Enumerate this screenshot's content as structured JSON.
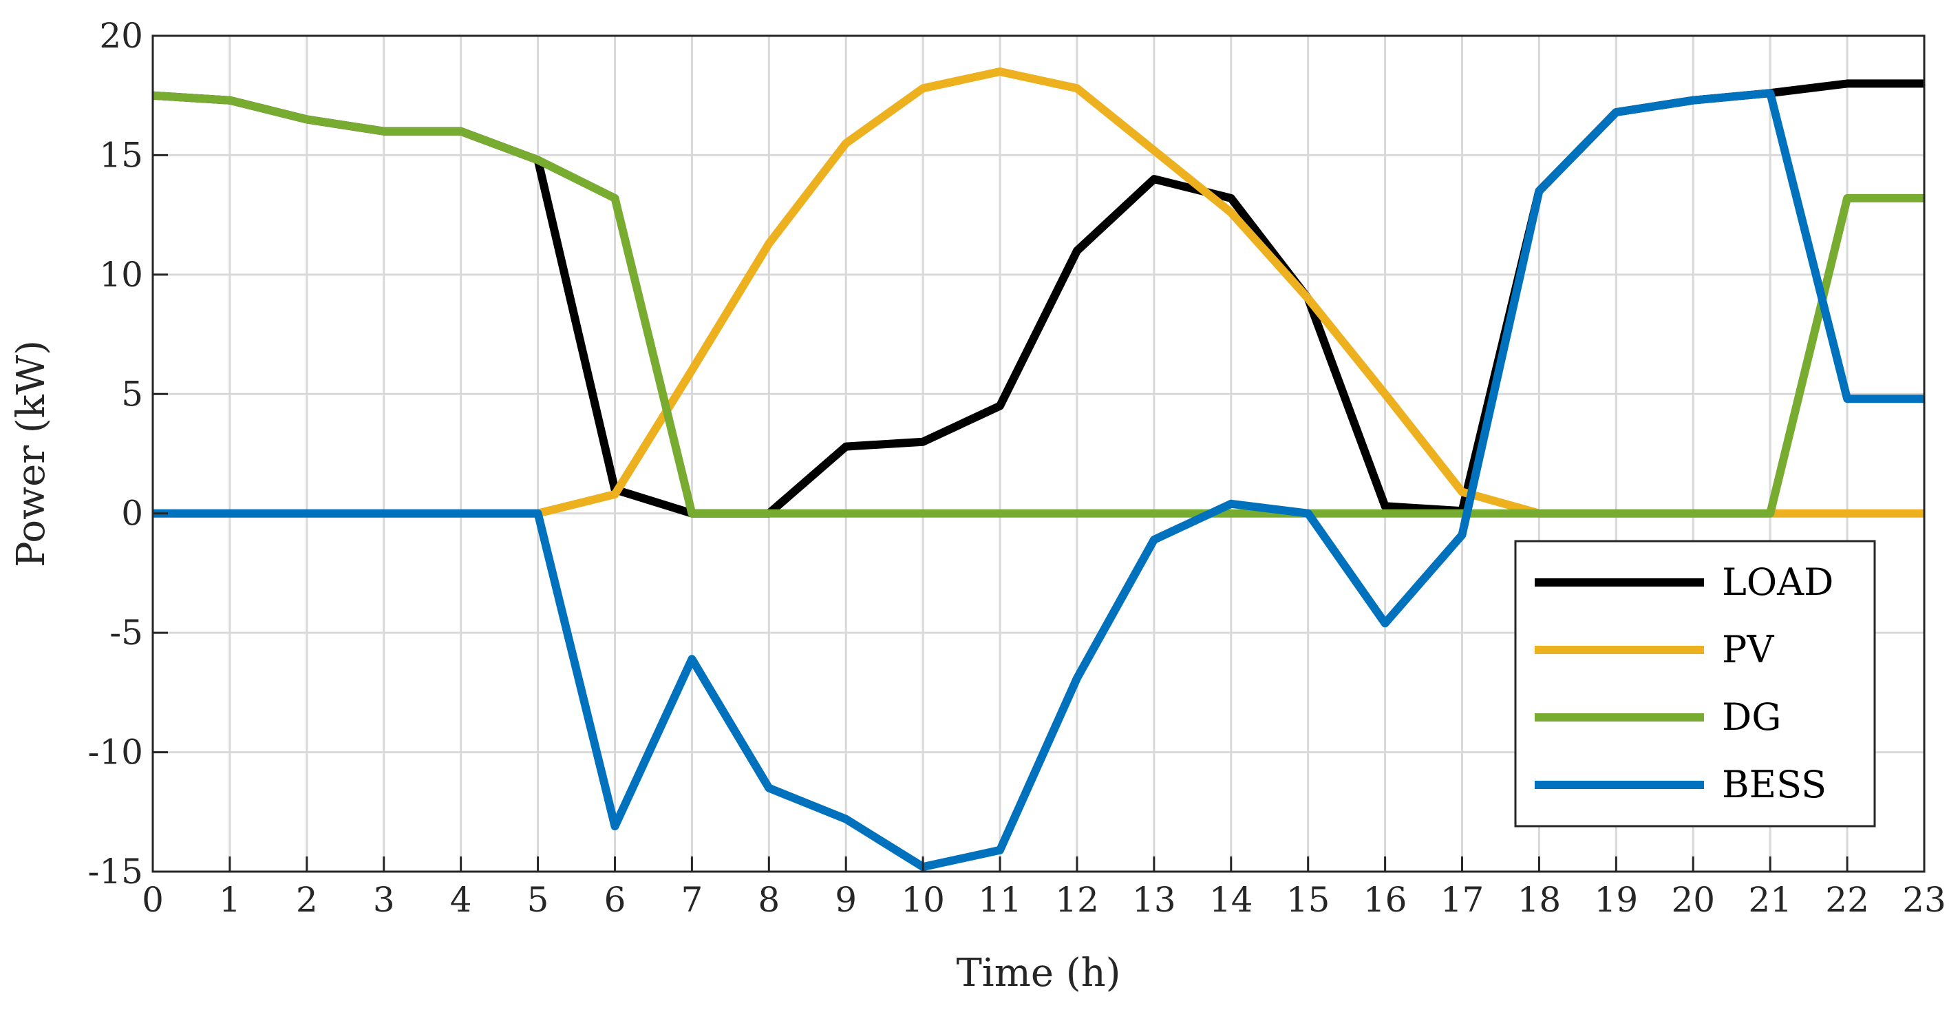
{
  "chart_data": {
    "type": "line",
    "xlabel": "Time (h)",
    "ylabel": "Power (kW)",
    "xlim": [
      0,
      23
    ],
    "ylim": [
      -15,
      20
    ],
    "x": [
      0,
      1,
      2,
      3,
      4,
      5,
      6,
      7,
      8,
      9,
      10,
      11,
      12,
      13,
      14,
      15,
      16,
      17,
      18,
      19,
      20,
      21,
      22,
      23
    ],
    "x_ticks": [
      "0",
      "1",
      "2",
      "3",
      "4",
      "5",
      "6",
      "7",
      "8",
      "9",
      "10",
      "11",
      "12",
      "13",
      "14",
      "15",
      "16",
      "17",
      "18",
      "19",
      "20",
      "21",
      "22",
      "23"
    ],
    "y_ticks": [
      "-15",
      "-10",
      "-5",
      "0",
      "5",
      "10",
      "15",
      "20"
    ],
    "y_tick_values": [
      -15,
      -10,
      -5,
      0,
      5,
      10,
      15,
      20
    ],
    "grid": true,
    "legend_position": "bottom-right",
    "series": [
      {
        "name": "LOAD",
        "color": "#000000",
        "values": [
          17.5,
          17.3,
          16.5,
          16.0,
          16.0,
          14.8,
          1.0,
          0.0,
          0.0,
          2.8,
          3.0,
          4.5,
          11.0,
          14.0,
          13.2,
          9.0,
          0.3,
          0.1,
          13.5,
          16.8,
          17.3,
          17.6,
          18.0,
          18.0
        ]
      },
      {
        "name": "PV",
        "color": "#EDB120",
        "values": [
          0,
          0,
          0,
          0,
          0,
          0,
          0.8,
          6.0,
          11.3,
          15.5,
          17.8,
          18.5,
          17.8,
          15.2,
          12.6,
          9.0,
          5.0,
          0.9,
          0,
          0,
          0,
          0,
          0,
          0
        ]
      },
      {
        "name": "DG",
        "color": "#77AC30",
        "values": [
          17.5,
          17.3,
          16.5,
          16.0,
          16.0,
          14.8,
          13.2,
          0,
          0,
          0,
          0,
          0,
          0,
          0,
          0,
          0,
          0,
          0,
          0,
          0,
          0,
          0,
          13.2,
          13.2
        ]
      },
      {
        "name": "BESS",
        "color": "#0072BD",
        "values": [
          0,
          0,
          0,
          0,
          0,
          0,
          -13.1,
          -6.1,
          -11.5,
          -12.8,
          -14.8,
          -14.1,
          -6.9,
          -1.1,
          0.4,
          0.0,
          -4.6,
          -0.9,
          13.5,
          16.8,
          17.3,
          17.6,
          4.8,
          4.8
        ]
      }
    ]
  }
}
